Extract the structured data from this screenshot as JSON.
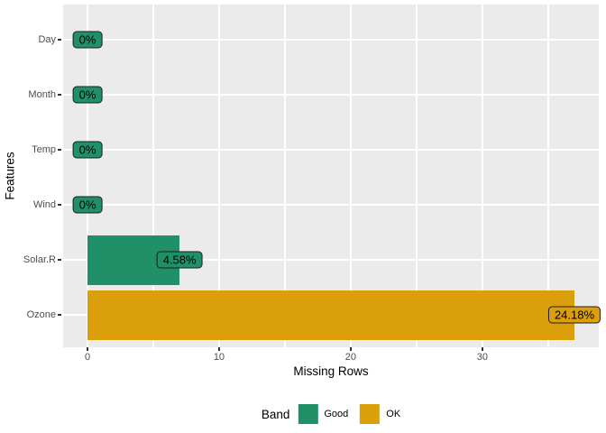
{
  "chart_data": {
    "type": "bar",
    "orientation": "horizontal",
    "categories": [
      "Day",
      "Month",
      "Temp",
      "Wind",
      "Solar.R",
      "Ozone"
    ],
    "values": [
      0,
      0,
      0,
      0,
      7,
      37
    ],
    "pct_missing": [
      0,
      0,
      0,
      0,
      4.58,
      24.18
    ],
    "bar_labels": [
      "0%",
      "0%",
      "0%",
      "0%",
      "4.58%",
      "24.18%"
    ],
    "bands": [
      "Good",
      "Good",
      "Good",
      "Good",
      "Good",
      "OK"
    ],
    "xlabel": "Missing Rows",
    "ylabel": "Features",
    "x_ticks": [
      0,
      10,
      20,
      30
    ],
    "x_minor_ticks": [
      5,
      15,
      25,
      35
    ],
    "xlim": [
      -1.85,
      38.85
    ],
    "grid": "on",
    "legend": {
      "title": "Band",
      "position": "bottom",
      "entries": [
        {
          "label": "Good",
          "color": "#1F9068"
        },
        {
          "label": "OK",
          "color": "#DC9F0C"
        }
      ]
    },
    "colors": {
      "band_good": "#1F9068",
      "band_ok": "#DC9F0C",
      "panel_background": "#EBEBEB",
      "gridline": "#FFFFFF",
      "tick_text": "#4D4D4D",
      "axis_title": "#000000",
      "label_border": "#1c1c1c",
      "figure_background": "#FFFFFF"
    }
  }
}
